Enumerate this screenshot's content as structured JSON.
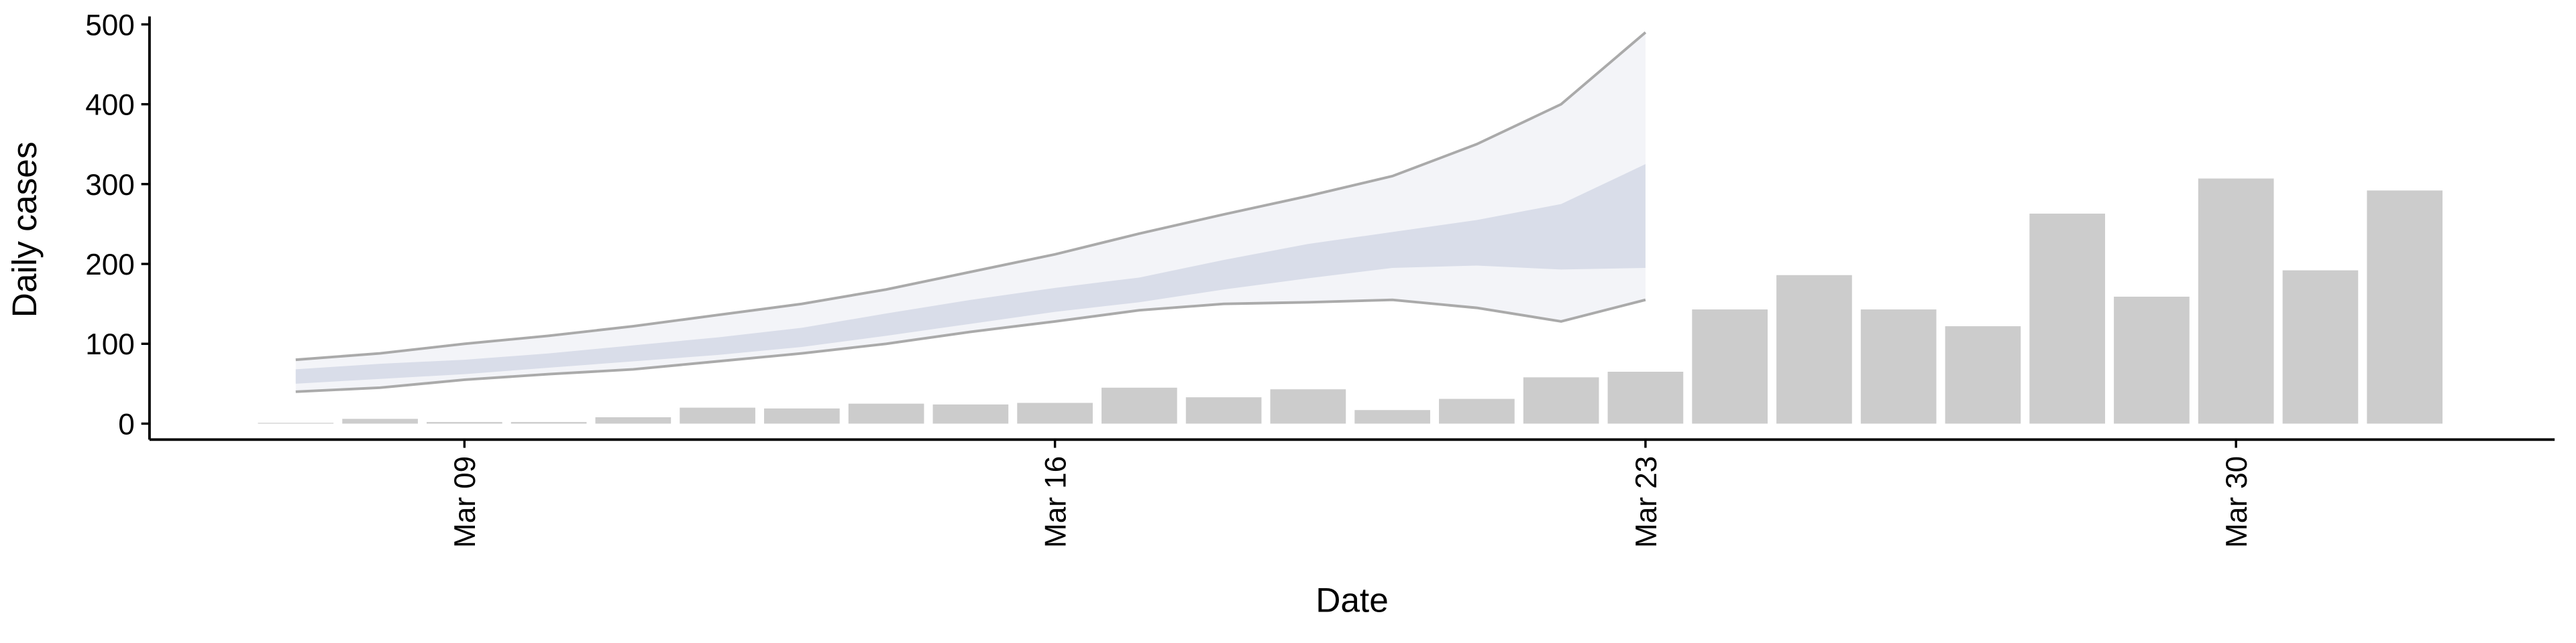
{
  "chart_data": {
    "type": "bar",
    "xlabel": "Date",
    "ylabel": "Daily cases",
    "x": [
      "Mar 07",
      "Mar 08",
      "Mar 09",
      "Mar 10",
      "Mar 11",
      "Mar 12",
      "Mar 13",
      "Mar 14",
      "Mar 15",
      "Mar 16",
      "Mar 17",
      "Mar 18",
      "Mar 19",
      "Mar 20",
      "Mar 21",
      "Mar 22",
      "Mar 23",
      "Mar 24",
      "Mar 25",
      "Mar 26",
      "Mar 27",
      "Mar 28",
      "Mar 29",
      "Mar 30",
      "Mar 31",
      "Apr 01"
    ],
    "values": [
      1,
      6,
      2,
      2,
      8,
      20,
      19,
      25,
      24,
      26,
      45,
      33,
      43,
      17,
      31,
      58,
      65,
      143,
      186,
      143,
      122,
      263,
      159,
      307,
      192,
      292
    ],
    "color": "#cccccc",
    "bands": [
      {
        "upper": [
          80,
          88,
          100,
          110,
          122,
          136,
          150,
          168,
          190,
          212,
          238,
          262,
          285,
          310,
          350,
          400,
          490,
          null,
          null,
          null,
          null,
          null,
          null,
          null,
          null,
          null
        ],
        "lower": [
          40,
          45,
          55,
          62,
          68,
          78,
          88,
          100,
          115,
          128,
          142,
          150,
          152,
          155,
          145,
          128,
          155,
          null,
          null,
          null,
          null,
          null,
          null,
          null,
          null,
          null
        ],
        "color": "#f3f4f8",
        "line_color": "#aaaaaa"
      },
      {
        "upper": [
          68,
          75,
          80,
          88,
          98,
          108,
          120,
          138,
          155,
          170,
          183,
          205,
          225,
          240,
          255,
          275,
          325,
          null,
          null,
          null,
          null,
          null,
          null,
          null,
          null,
          null
        ],
        "lower": [
          50,
          56,
          62,
          70,
          78,
          86,
          96,
          110,
          125,
          140,
          152,
          168,
          182,
          195,
          198,
          193,
          195,
          null,
          null,
          null,
          null,
          null,
          null,
          null,
          null,
          null
        ],
        "color": "#d9dde9"
      }
    ],
    "ylim": [
      -20,
      510
    ],
    "yticks": [
      0,
      100,
      200,
      300,
      400,
      500
    ],
    "xticks": [
      "Mar 09",
      "Mar 16",
      "Mar 23",
      "Mar 30"
    ]
  }
}
